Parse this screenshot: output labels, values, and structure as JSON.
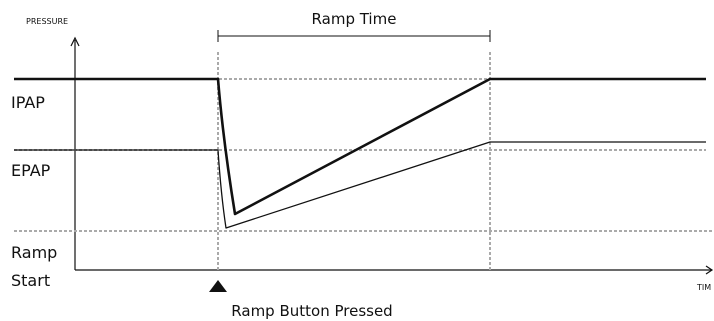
{
  "diagram": {
    "y_axis_label": "PRESSURE",
    "x_axis_label": "TIM",
    "levels": {
      "ipap": "IPAP",
      "epap": "EPAP",
      "ramp_start_line1": "Ramp",
      "ramp_start_line2": "Start"
    },
    "ramp_time_label": "Ramp Time",
    "button_label": "Ramp Button Pressed"
  }
}
